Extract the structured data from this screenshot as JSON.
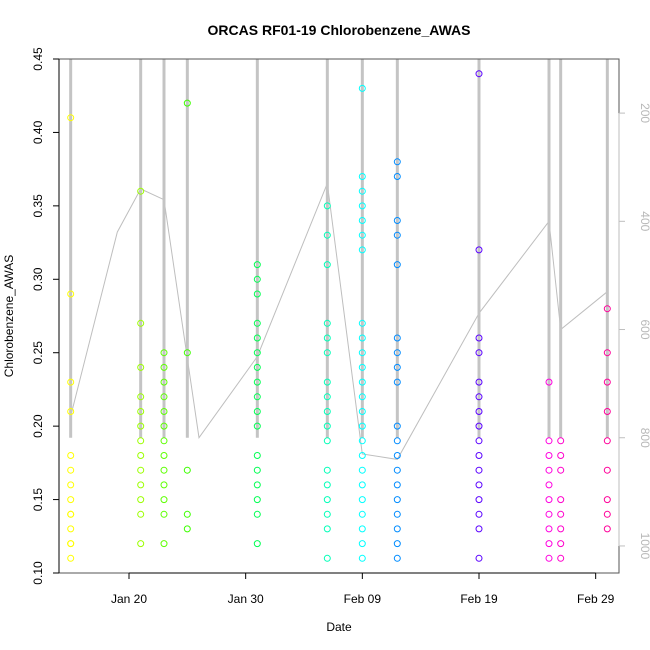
{
  "chart_data": {
    "type": "scatter",
    "title": "ORCAS RF01-19 Chlorobenzene_AWAS",
    "xlabel": "Date",
    "ylabel": "Chlorobenzene_AWAS",
    "x_unit": "date",
    "xlim": [
      "2016-01-14",
      "2016-03-02"
    ],
    "ylim": [
      0.1,
      0.45
    ],
    "y_ticks": [
      0.1,
      0.15,
      0.2,
      0.25,
      0.3,
      0.35,
      0.4,
      0.45
    ],
    "y_tick_labels": [
      "0.10",
      "0.15",
      "0.20",
      "0.25",
      "0.30",
      "0.35",
      "0.40",
      "0.45"
    ],
    "x_ticks": [
      "2016-01-20",
      "2016-01-30",
      "2016-02-09",
      "2016-02-19",
      "2016-02-29"
    ],
    "x_tick_labels": [
      "Jan 20",
      "Jan 30",
      "Feb 09",
      "Feb 19",
      "Feb 29"
    ],
    "right_axis": {
      "ticks": [
        200,
        400,
        600,
        800,
        1000
      ],
      "tick_labels": [
        "200",
        "400",
        "600",
        "800",
        "1000"
      ],
      "range": [
        100,
        1050
      ],
      "reversed": true,
      "color": "#bebebe"
    },
    "grid": false,
    "legend": "none",
    "series": [
      {
        "x": "2016-01-15",
        "color": "#ffff00",
        "y": [
          0.11,
          0.12,
          0.12,
          0.13,
          0.14,
          0.14,
          0.15,
          0.16,
          0.17,
          0.18,
          0.21,
          0.23,
          0.29,
          0.41
        ]
      },
      {
        "x": "2016-01-21",
        "color": "#9cff00",
        "y": [
          0.12,
          0.14,
          0.15,
          0.16,
          0.17,
          0.18,
          0.19,
          0.2,
          0.21,
          0.22,
          0.24,
          0.27,
          0.36
        ]
      },
      {
        "x": "2016-01-23",
        "color": "#5dff00",
        "y": [
          0.12,
          0.14,
          0.15,
          0.16,
          0.17,
          0.18,
          0.19,
          0.2,
          0.21,
          0.22,
          0.23,
          0.24,
          0.25
        ]
      },
      {
        "x": "2016-01-25",
        "color": "#3dff00",
        "y": [
          0.13,
          0.14,
          0.17,
          0.25,
          0.42
        ]
      },
      {
        "x": "2016-01-31",
        "color": "#00ff52",
        "y": [
          0.12,
          0.14,
          0.15,
          0.16,
          0.17,
          0.18,
          0.2,
          0.21,
          0.22,
          0.23,
          0.24,
          0.25,
          0.26,
          0.27,
          0.29,
          0.3,
          0.31
        ]
      },
      {
        "x": "2016-02-06",
        "color": "#00ffb8",
        "y": [
          0.11,
          0.13,
          0.14,
          0.15,
          0.16,
          0.17,
          0.19,
          0.2,
          0.21,
          0.22,
          0.23,
          0.25,
          0.26,
          0.27,
          0.31,
          0.33,
          0.35
        ]
      },
      {
        "x": "2016-02-09",
        "color": "#00ffff",
        "y": [
          0.11,
          0.12,
          0.13,
          0.14,
          0.15,
          0.16,
          0.17,
          0.18,
          0.19,
          0.2,
          0.21,
          0.22,
          0.23,
          0.24,
          0.25,
          0.26,
          0.27,
          0.32,
          0.33,
          0.34,
          0.35,
          0.36,
          0.37,
          0.43
        ]
      },
      {
        "x": "2016-02-12",
        "color": "#008cff",
        "y": [
          0.11,
          0.12,
          0.13,
          0.14,
          0.15,
          0.16,
          0.17,
          0.18,
          0.19,
          0.2,
          0.23,
          0.24,
          0.25,
          0.26,
          0.31,
          0.33,
          0.34,
          0.37,
          0.38
        ]
      },
      {
        "x": "2016-02-19",
        "color": "#5a00ff",
        "y": [
          0.11,
          0.13,
          0.14,
          0.15,
          0.16,
          0.17,
          0.18,
          0.19,
          0.2,
          0.21,
          0.22,
          0.23,
          0.25,
          0.26,
          0.32,
          0.44
        ]
      },
      {
        "x": "2016-02-25",
        "color": "#ff00e0",
        "y": [
          0.11,
          0.12,
          0.13,
          0.14,
          0.15,
          0.16,
          0.17,
          0.18,
          0.19,
          0.23
        ]
      },
      {
        "x": "2016-02-26",
        "color": "#ff00cc",
        "y": [
          0.11,
          0.12,
          0.13,
          0.14,
          0.15,
          0.17,
          0.18,
          0.19
        ]
      },
      {
        "x": "2016-03-01",
        "color": "#ff009a",
        "y": [
          0.13,
          0.14,
          0.15,
          0.17,
          0.19,
          0.21,
          0.23,
          0.25,
          0.28
        ]
      }
    ],
    "right_axis_trace": {
      "color": "#bebebe",
      "x": [
        "2016-01-15",
        "2016-01-19",
        "2016-01-21",
        "2016-01-23",
        "2016-01-26",
        "2016-01-31",
        "2016-02-06",
        "2016-02-09",
        "2016-02-12",
        "2016-02-19",
        "2016-02-25",
        "2016-02-26",
        "2016-03-01"
      ],
      "y": [
        760,
        420,
        340,
        360,
        800,
        650,
        330,
        830,
        840,
        570,
        400,
        600,
        530
      ]
    }
  }
}
